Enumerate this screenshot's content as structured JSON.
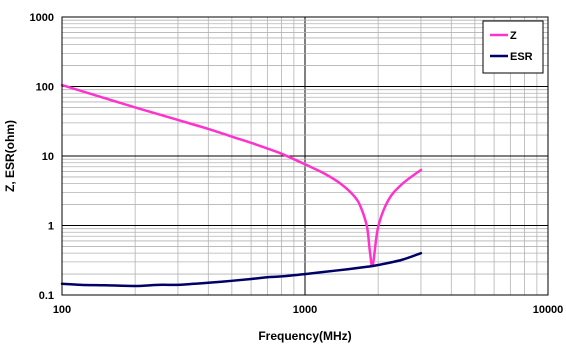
{
  "chart_data": {
    "type": "line",
    "xlabel": "Frequency(MHz)",
    "ylabel": "Z, ESR(ohm)",
    "x_scale": "log",
    "y_scale": "log",
    "xlim": [
      100,
      10000
    ],
    "ylim": [
      0.1,
      1000
    ],
    "x_ticks": [
      100,
      1000,
      10000
    ],
    "x_tick_labels": [
      "100",
      "1000",
      "10000"
    ],
    "y_ticks": [
      0.1,
      1,
      10,
      100,
      1000
    ],
    "y_tick_labels": [
      "0.1",
      "1",
      "10",
      "100",
      "1000"
    ],
    "grid": true,
    "legend_position": "top-right",
    "series": [
      {
        "name": "Z",
        "color": "#ff33cc",
        "x": [
          100,
          150,
          200,
          300,
          400,
          500,
          600,
          700,
          800,
          1000,
          1200,
          1400,
          1600,
          1700,
          1800,
          1850,
          1900,
          2000,
          2200,
          2500,
          3000
        ],
        "y": [
          105,
          68,
          50,
          33,
          24.5,
          19,
          15.5,
          12.8,
          10.8,
          7.6,
          5.6,
          4.0,
          2.6,
          1.8,
          0.95,
          0.42,
          0.27,
          0.95,
          2.3,
          3.9,
          6.3
        ]
      },
      {
        "name": "ESR",
        "color": "#000066",
        "x": [
          100,
          120,
          150,
          200,
          250,
          300,
          350,
          400,
          500,
          600,
          700,
          800,
          1000,
          1200,
          1500,
          1800,
          2000,
          2500,
          3000
        ],
        "y": [
          0.145,
          0.14,
          0.138,
          0.135,
          0.14,
          0.14,
          0.145,
          0.15,
          0.16,
          0.17,
          0.18,
          0.185,
          0.2,
          0.215,
          0.235,
          0.255,
          0.27,
          0.32,
          0.4
        ]
      }
    ]
  }
}
